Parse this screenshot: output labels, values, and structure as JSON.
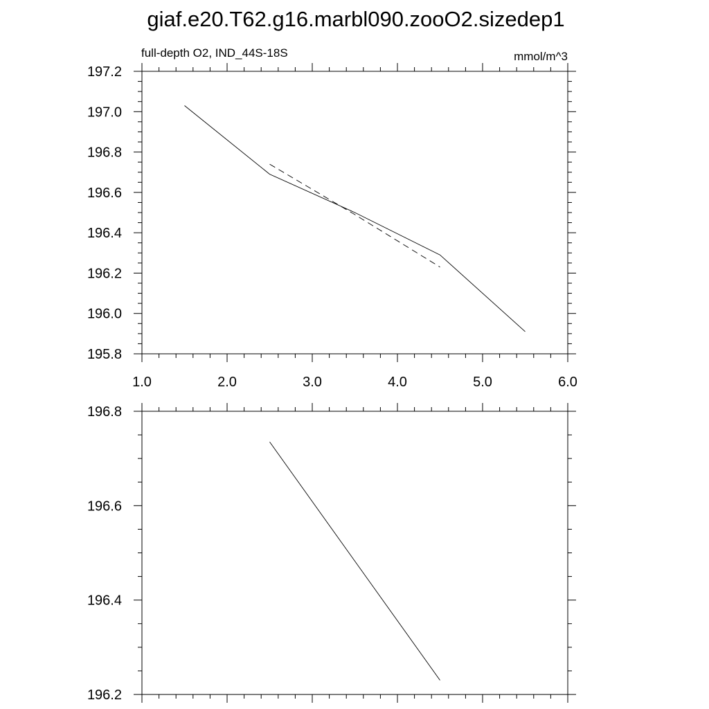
{
  "title": "giaf.e20.T62.g16.marbl090.zooO2.sizedep1",
  "chart_data": [
    {
      "type": "line",
      "title_left": "full-depth O2, IND_44S-18S",
      "title_right": "mmol/m^3",
      "xlim": [
        1.0,
        6.0
      ],
      "ylim": [
        195.8,
        197.2
      ],
      "x_tick_labels": [
        "1.0",
        "2.0",
        "3.0",
        "4.0",
        "5.0",
        "6.0"
      ],
      "y_tick_labels": [
        "195.8",
        "196.0",
        "196.2",
        "196.4",
        "196.6",
        "196.8",
        "197.0",
        "197.2"
      ],
      "grid": false,
      "series": [
        {
          "style": "solid",
          "x": [
            1.5,
            2.5,
            3.5,
            4.5,
            5.5
          ],
          "y": [
            197.03,
            196.69,
            196.5,
            196.29,
            195.91
          ]
        },
        {
          "style": "dashed",
          "x": [
            2.5,
            3.5,
            4.5
          ],
          "y": [
            196.74,
            196.49,
            196.23
          ]
        }
      ]
    },
    {
      "type": "line",
      "xlim": [
        1.0,
        6.0
      ],
      "ylim": [
        196.2,
        196.8
      ],
      "y_tick_labels": [
        "196.2",
        "196.4",
        "196.6",
        "196.8"
      ],
      "grid": false,
      "series": [
        {
          "style": "solid",
          "x": [
            2.5,
            4.5
          ],
          "y": [
            196.735,
            196.23
          ]
        }
      ]
    }
  ]
}
